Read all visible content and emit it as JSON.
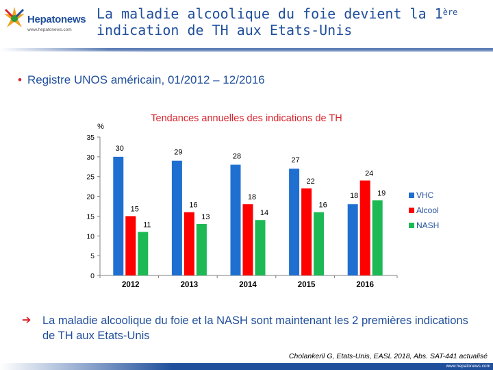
{
  "header": {
    "logo_name": "Hepatonews",
    "logo_url": "www.hepatonews.com",
    "title_line1": "La maladie alcoolique du foie devient la 1",
    "title_superscript": "ère",
    "title_line2": "indication de TH aux Etats-Unis"
  },
  "bullet": {
    "text": "Registre UNOS américain, 01/2012 – 12/2016"
  },
  "chart_data": {
    "type": "bar",
    "title": "Tendances annuelles des indications de TH",
    "ylabel": "%",
    "xlabel": "",
    "ylim": [
      0,
      35
    ],
    "yticks": [
      "0",
      "5",
      "10",
      "15",
      "20",
      "25",
      "30",
      "35"
    ],
    "categories": [
      "2012",
      "2013",
      "2014",
      "2015",
      "2016"
    ],
    "series": [
      {
        "name": "VHC",
        "color": "#1f6fd1",
        "values": [
          30,
          29,
          28,
          27,
          18
        ],
        "labels": [
          "30",
          "29",
          "28",
          "27",
          "18"
        ]
      },
      {
        "name": "Alcool",
        "color": "#ff0000",
        "values": [
          15,
          16,
          18,
          22,
          24
        ],
        "labels": [
          "15",
          "16",
          "18",
          "22",
          "24"
        ]
      },
      {
        "name": "NASH",
        "color": "#1db954",
        "values": [
          11,
          13,
          14,
          16,
          19
        ],
        "labels": [
          "11",
          "13",
          "14",
          "16",
          "19"
        ]
      }
    ],
    "legend_position": "right"
  },
  "conclusion": {
    "arrow_icon": "➔",
    "text": "La maladie alcoolique du foie et la NASH sont maintenant les 2 premières indications de TH aux Etats-Unis"
  },
  "citation": "Cholankeril G, Etats-Unis, EASL 2018, Abs. SAT-441 actualisé",
  "footer": {
    "url": "www.hepatonews.com"
  }
}
